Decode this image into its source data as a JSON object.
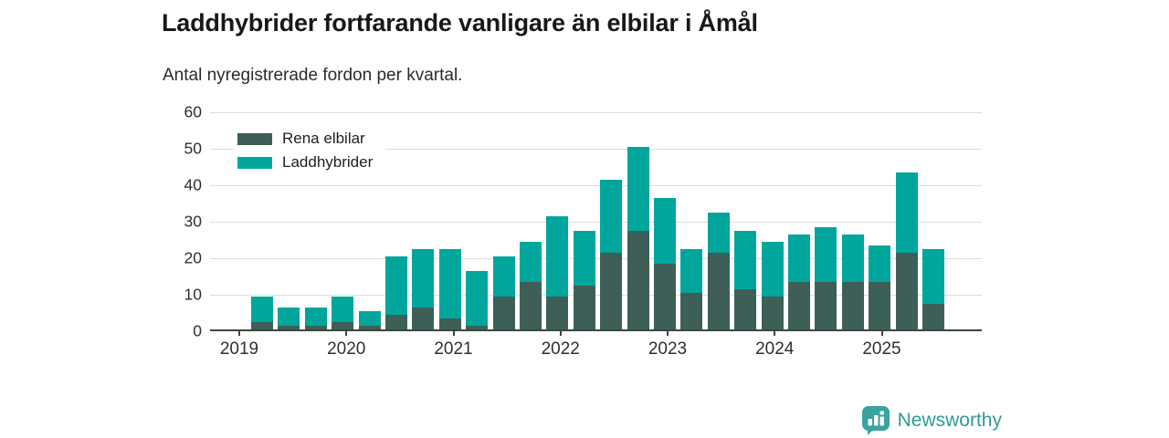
{
  "header": {
    "title": "Laddhybrider fortfarande vanligare än elbilar i Åmål",
    "subtitle": "Antal nyregistrerade fordon per kvartal."
  },
  "footer": {
    "brand": "Newsworthy",
    "brand_color": "#2e9c98"
  },
  "chart_data": {
    "type": "bar",
    "stacked": true,
    "title": "Laddhybrider fortfarande vanligare än elbilar i Åmål",
    "subtitle": "Antal nyregistrerade fordon per kvartal.",
    "categories": [
      "2019 K2",
      "2019 K3",
      "2019 K4",
      "2020 K1",
      "2020 K2",
      "2020 K3",
      "2020 K4",
      "2021 K1",
      "2021 K2",
      "2021 K3",
      "2021 K4",
      "2022 K1",
      "2022 K2",
      "2022 K3",
      "2022 K4",
      "2023 K1",
      "2023 K2",
      "2023 K3",
      "2023 K4",
      "2024 K1",
      "2024 K2",
      "2024 K3",
      "2024 K4",
      "2025 K1",
      "2025 K2",
      "2025 K3"
    ],
    "series": [
      {
        "name": "Rena elbilar",
        "color": "#3e5f58",
        "values": [
          2,
          1,
          1,
          2,
          1,
          4,
          6,
          3,
          1,
          9,
          13,
          9,
          12,
          21,
          27,
          18,
          10,
          21,
          11,
          9,
          13,
          13,
          13,
          13,
          21,
          7
        ]
      },
      {
        "name": "Laddhybrider",
        "color": "#00a69c",
        "values": [
          7,
          5,
          5,
          7,
          4,
          16,
          16,
          19,
          15,
          11,
          11,
          22,
          15,
          20,
          23,
          18,
          12,
          11,
          16,
          15,
          13,
          15,
          13,
          10,
          22,
          15
        ]
      }
    ],
    "stacked_totals": [
      9,
      6,
      6,
      9,
      5,
      20,
      22,
      22,
      16,
      20,
      24,
      31,
      27,
      41,
      50,
      36,
      22,
      32,
      27,
      24,
      26,
      28,
      26,
      23,
      43,
      22
    ],
    "ylabel": "",
    "xlabel": "",
    "ylim": [
      0,
      60
    ],
    "yticks": [
      0,
      10,
      20,
      30,
      40,
      50,
      60
    ],
    "xtick_years": [
      "2019",
      "2020",
      "2021",
      "2022",
      "2023",
      "2024",
      "2025"
    ],
    "grid": "horizontal",
    "legend_position": "top-left",
    "gridline_color": "#dcdcdc",
    "axis_color": "#3b4742"
  }
}
